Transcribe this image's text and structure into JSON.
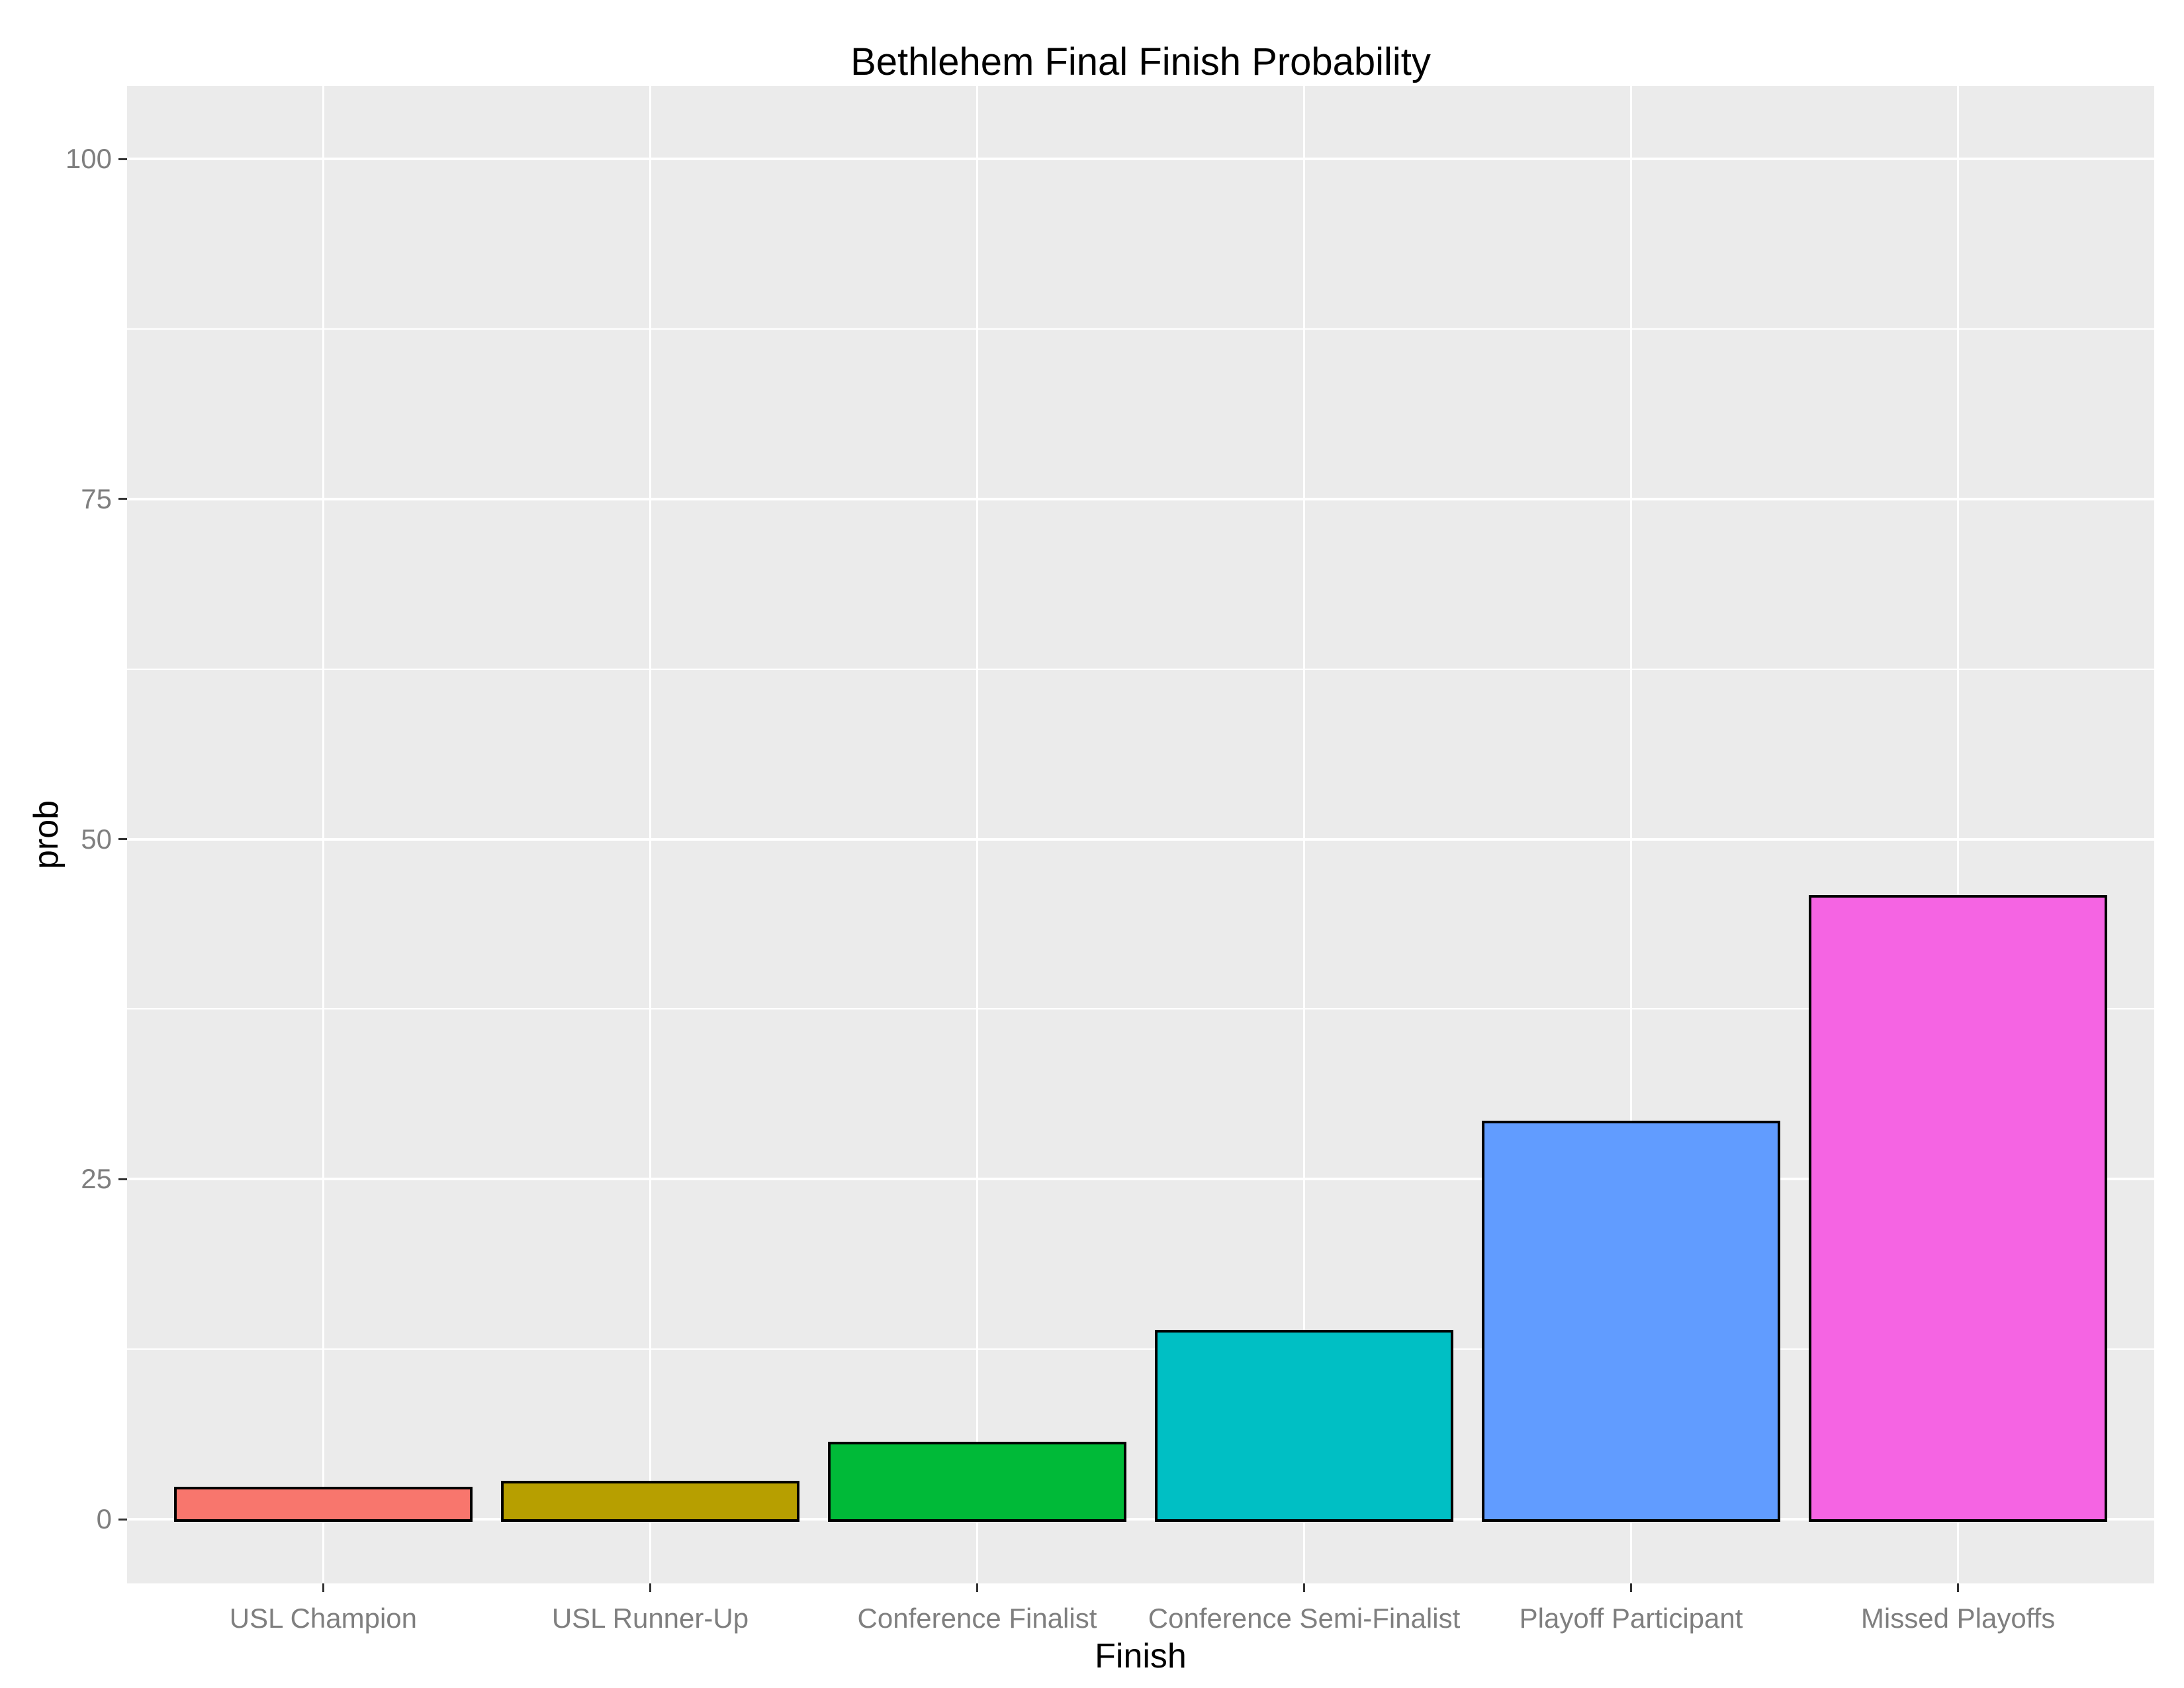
{
  "title": "Bethlehem Final Finish Probability",
  "chart_data": {
    "type": "bar",
    "title": "Bethlehem Final Finish Probability",
    "xlabel": "Finish",
    "ylabel": "prob",
    "categories": [
      "USL Champion",
      "USL Runner-Up",
      "Conference Finalist",
      "Conference Semi-Finalist",
      "Playoff Participant",
      "Missed Playoffs"
    ],
    "values": [
      2.4,
      2.8,
      5.7,
      13.9,
      29.3,
      45.9
    ],
    "bar_colors": [
      "#F8766D",
      "#B79F00",
      "#00BA38",
      "#00BFC4",
      "#619CFF",
      "#F564E3"
    ],
    "bar_border_color": "#000000",
    "y_ticks": [
      0,
      25,
      50,
      75,
      100
    ],
    "y_minor_ticks": [
      12.5,
      37.5,
      62.5,
      87.5
    ],
    "ylim": [
      0,
      100
    ],
    "grid": true,
    "legend": "none",
    "panel_background": "#EBEBEB",
    "gridline_color": "#FFFFFF",
    "axis_text_color": "#7F7F7F",
    "tick_mark_color": "#333333",
    "title_color": "#000000"
  }
}
